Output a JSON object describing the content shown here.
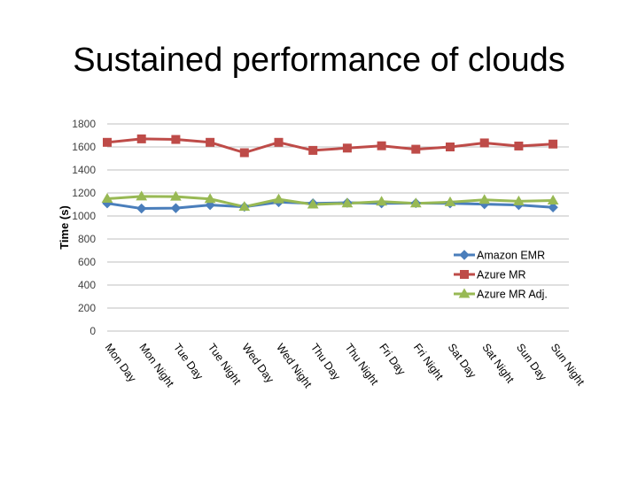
{
  "slide": {
    "title": "Sustained performance of clouds"
  },
  "chart_data": {
    "type": "line",
    "title": "",
    "xlabel": "",
    "ylabel": "Time (s)",
    "ylim": [
      0,
      1800
    ],
    "y_ticks": [
      0,
      200,
      400,
      600,
      800,
      1000,
      1200,
      1400,
      1600,
      1800
    ],
    "grid": true,
    "legend": "bottom-right",
    "categories": [
      "Mon Day",
      "Mon Night",
      "Tue Day",
      "Tue Night",
      "Wed Day",
      "Wed Night",
      "Thu Day",
      "Thu Night",
      "Fri Day",
      "Fri Night",
      "Sat Day",
      "Sat Night",
      "Sun Day",
      "Sun Night"
    ],
    "series": [
      {
        "name": "Amazon EMR",
        "color": "#4a7ebb",
        "marker": "diamond",
        "values": [
          1110,
          1065,
          1068,
          1095,
          1080,
          1120,
          1110,
          1115,
          1110,
          1112,
          1110,
          1103,
          1095,
          1075
        ]
      },
      {
        "name": "Azure MR",
        "color": "#be4b48",
        "marker": "square",
        "values": [
          1640,
          1670,
          1665,
          1640,
          1550,
          1640,
          1570,
          1590,
          1610,
          1580,
          1600,
          1635,
          1608,
          1625
        ]
      },
      {
        "name": "Azure MR Adj.",
        "color": "#98b954",
        "marker": "triangle",
        "values": [
          1150,
          1170,
          1168,
          1148,
          1080,
          1145,
          1100,
          1110,
          1125,
          1110,
          1120,
          1140,
          1128,
          1135
        ]
      }
    ]
  }
}
